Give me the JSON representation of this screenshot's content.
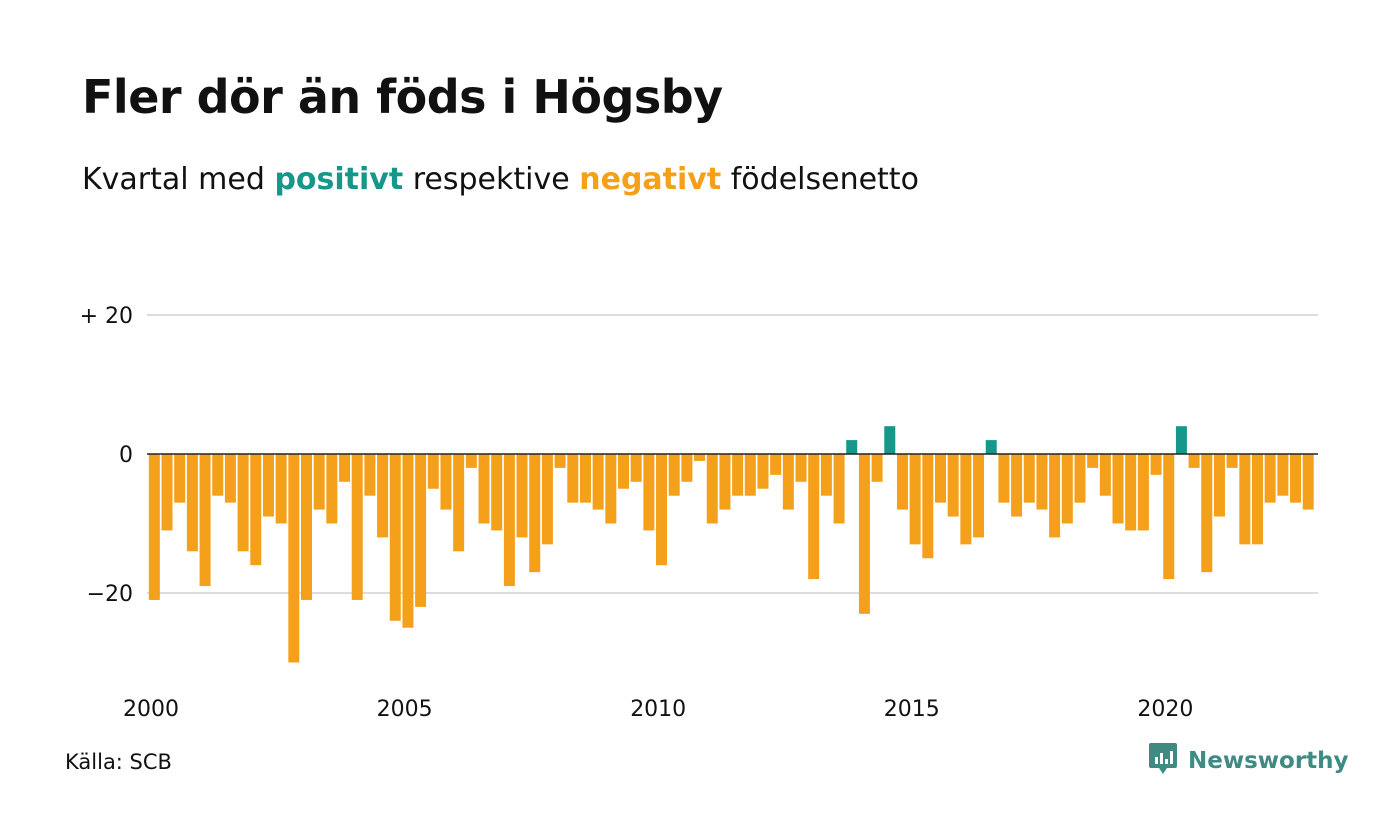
{
  "title": "Fler dör än föds i Högsby",
  "subtitle": {
    "before": "Kvartal med",
    "positive_word": "positivt",
    "middle": "respektive",
    "negative_word": "negativt",
    "after": "födelsenetto"
  },
  "colors": {
    "positive": "#17968a",
    "negative": "#f5a01a",
    "grid": "#dddddd",
    "zero_line": "#222222",
    "brand": "#3f8a82"
  },
  "source": "Källa: SCB",
  "brand": {
    "name": "Newsworthy",
    "icon": "newsworthy-logo-icon"
  },
  "chart_data": {
    "type": "bar",
    "xlabel": "",
    "ylabel": "",
    "ylim": [
      -30,
      20
    ],
    "yticks": [
      {
        "value": 20,
        "label": "+ 20"
      },
      {
        "value": 0,
        "label": "0"
      },
      {
        "value": -20,
        "label": "−20"
      }
    ],
    "xticks": [
      {
        "value": 2000,
        "label": "2000"
      },
      {
        "value": 2005,
        "label": "2005"
      },
      {
        "value": 2010,
        "label": "2010"
      },
      {
        "value": 2015,
        "label": "2015"
      },
      {
        "value": 2020,
        "label": "2020"
      }
    ],
    "grid": true,
    "start_year": 2000,
    "series": [
      {
        "values": [
          -21,
          -11,
          -7,
          -14,
          -19,
          -6,
          -7,
          -14,
          -16,
          -9,
          -10,
          -30,
          -21,
          -8,
          -10,
          -4,
          -21,
          -6,
          -12,
          -24,
          -25,
          -22,
          -5,
          -8,
          -14,
          -2,
          -10,
          -11,
          -19,
          -12,
          -17,
          -13,
          -2,
          -7,
          -7,
          -8,
          -10,
          -5,
          -4,
          -11,
          -16,
          -6,
          -4,
          -1,
          -10,
          -8,
          -6,
          -6,
          -5,
          -3,
          -8,
          -4,
          -18,
          -6,
          -10,
          2,
          -23,
          -4,
          4,
          -8,
          -13,
          -15,
          -7,
          -9,
          -13,
          -12,
          2,
          -7,
          -9,
          -7,
          -8,
          -12,
          -10,
          -7,
          -2,
          -6,
          -10,
          -11,
          -11,
          -3,
          -18,
          4,
          -2,
          -17,
          -9,
          -2,
          -13,
          -13,
          -7,
          -6,
          -7,
          -8
        ]
      }
    ]
  }
}
